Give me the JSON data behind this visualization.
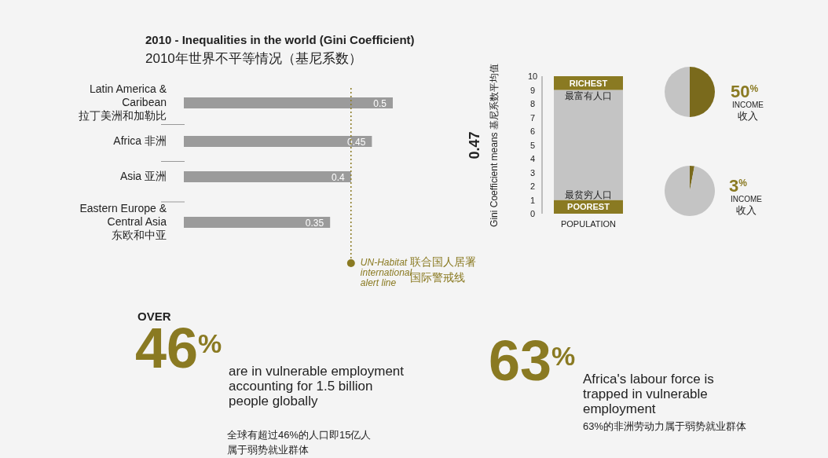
{
  "chart_data": [
    {
      "type": "bar",
      "orientation": "horizontal",
      "title": "2010 - Inequalities in the world (Gini Coefficient)",
      "subtitle": "2010年世界不平等情况（基尼系数）",
      "categories": [
        "Latin America &\nCaribean\n拉丁美洲和加勒比",
        "Africa 非洲",
        "Asia 亚洲",
        "Eastern Europe &\nCentral Asia\n东欧和中亚"
      ],
      "values": [
        0.5,
        0.45,
        0.4,
        0.35
      ],
      "color": "#9b9b9b",
      "data_labels": true,
      "annotations": [
        "联合国人居署",
        "国际警戒线"
      ],
      "ref_lines": [
        {
          "axis": "x",
          "value": 0.4,
          "label": "UN-Habitat\ninternational\nalert line",
          "color": "#8a7a22",
          "line_style": "dotted"
        }
      ]
    },
    {
      "type": "bar",
      "stacked": true,
      "categories": [
        null
      ],
      "series": [
        {
          "color": "#8a7a22",
          "values": [
            1
          ]
        },
        {
          "color": "#c4c4c4",
          "values": [
            8
          ]
        },
        {
          "color": "#8a7a22",
          "values": [
            1
          ]
        }
      ],
      "ylim": [
        0,
        10
      ],
      "yticks": [
        0,
        1,
        2,
        3,
        4,
        5,
        6,
        7,
        8,
        9,
        10
      ],
      "xlabel": "POPULATION",
      "ylabel": "Gini Coefficient means 基尼系数平均值",
      "annotations": [
        "RICHEST",
        "最富有人口",
        "最贫穷人口",
        "POOREST",
        "0.47"
      ]
    },
    {
      "type": "pie",
      "categories": [
        null,
        null
      ],
      "values": [
        50,
        50
      ],
      "colors": [
        "#7a6a1c",
        "#c4c4c4"
      ],
      "annotations": [
        "50$^{%}$",
        "INCOME",
        "收入"
      ]
    },
    {
      "type": "pie",
      "categories": [
        null,
        null
      ],
      "values": [
        3,
        97
      ],
      "colors": [
        "#7a6a1c",
        "#c4c4c4"
      ],
      "annotations": [
        "3$^{%}$",
        "INCOME",
        "收入"
      ]
    },
    {
      "type": "other",
      "annotations": [
        "OVER",
        "46$^{%}$",
        "are in vulnerable employment accounting for 1.5 billion people globally",
        "全球有超过46%的人口即15亿人",
        "属于弱势就业群体"
      ]
    },
    {
      "type": "other",
      "annotations": [
        "63$^{%}$",
        "Africa's labour force is trapped in vulnerable employment",
        "63%的非洲劳动力属于弱势就业群体"
      ]
    }
  ]
}
